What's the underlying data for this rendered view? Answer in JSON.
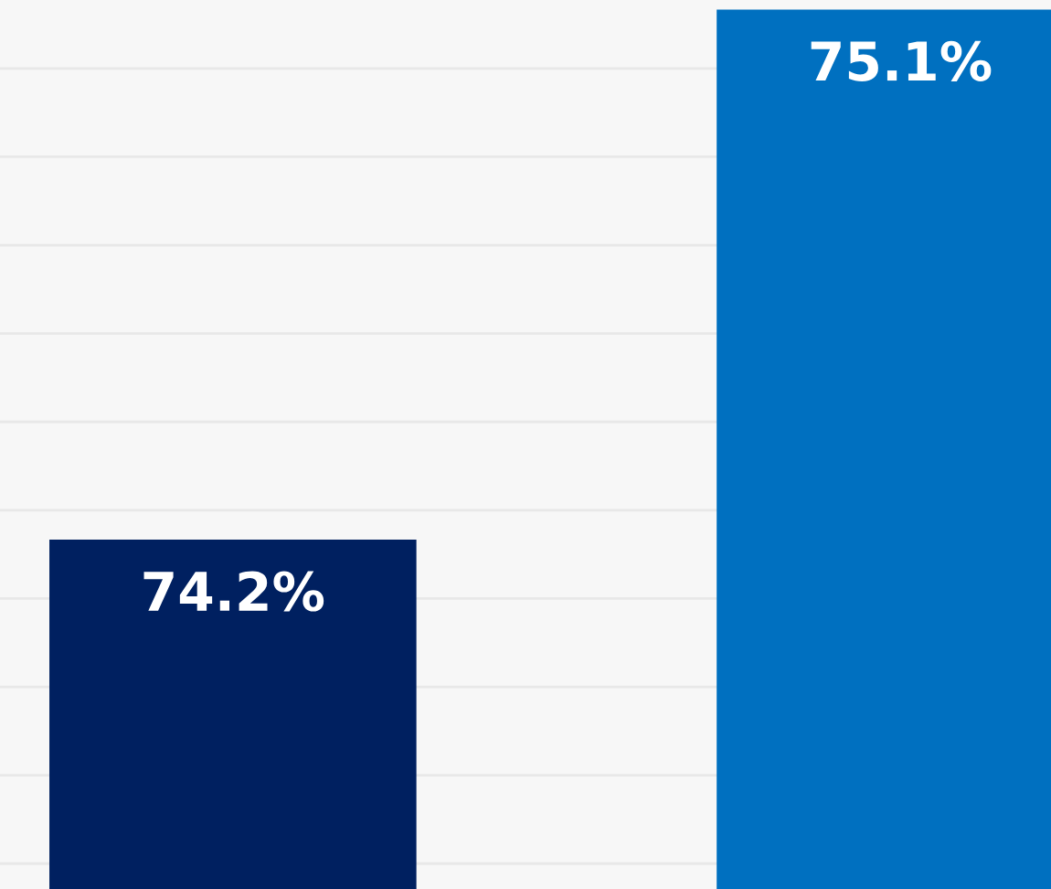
{
  "chart_data": {
    "type": "bar",
    "categories": [
      null,
      null
    ],
    "values": [
      74.2,
      75.1
    ],
    "value_labels": [
      "74.2%",
      "75.1%"
    ],
    "colors": [
      "#002060",
      "#0070c0"
    ],
    "grid": "y",
    "tick_labels": false
  }
}
